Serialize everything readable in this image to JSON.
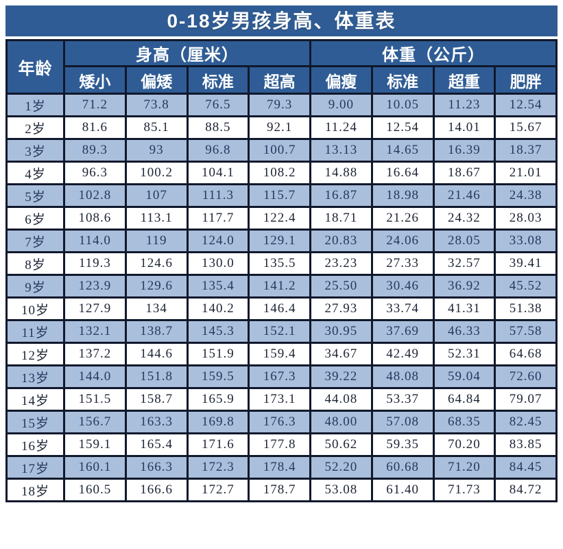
{
  "title": "0-18岁男孩身高、体重表",
  "header": {
    "age_label": "年龄",
    "height_group": "身高（厘米）",
    "weight_group": "体重（公斤）",
    "height_subcols": [
      "矮小",
      "偏矮",
      "标准",
      "超高"
    ],
    "weight_subcols": [
      "偏瘦",
      "标准",
      "超重",
      "肥胖"
    ]
  },
  "colors": {
    "header_bg": "#2f5c94",
    "header_text": "#ffffff",
    "row_alt_bg": "#a9bfdc",
    "row_bg": "#ffffff",
    "border": "#10182b",
    "data_text_blue": "#24395e",
    "data_text_white": "#1c2434"
  },
  "chart_data": {
    "type": "table",
    "title": "0-18岁男孩身高、体重表",
    "row_header": "年龄",
    "column_groups": [
      {
        "label": "身高（厘米）",
        "columns": [
          "矮小",
          "偏矮",
          "标准",
          "超高"
        ]
      },
      {
        "label": "体重（公斤）",
        "columns": [
          "偏瘦",
          "标准",
          "超重",
          "肥胖"
        ]
      }
    ],
    "rows": [
      {
        "age": "1岁",
        "values": [
          "71.2",
          "73.8",
          "76.5",
          "79.3",
          "9.00",
          "10.05",
          "11.23",
          "12.54"
        ]
      },
      {
        "age": "2岁",
        "values": [
          "81.6",
          "85.1",
          "88.5",
          "92.1",
          "11.24",
          "12.54",
          "14.01",
          "15.67"
        ]
      },
      {
        "age": "3岁",
        "values": [
          "89.3",
          "93",
          "96.8",
          "100.7",
          "13.13",
          "14.65",
          "16.39",
          "18.37"
        ]
      },
      {
        "age": "4岁",
        "values": [
          "96.3",
          "100.2",
          "104.1",
          "108.2",
          "14.88",
          "16.64",
          "18.67",
          "21.01"
        ]
      },
      {
        "age": "5岁",
        "values": [
          "102.8",
          "107",
          "111.3",
          "115.7",
          "16.87",
          "18.98",
          "21.46",
          "24.38"
        ]
      },
      {
        "age": "6岁",
        "values": [
          "108.6",
          "113.1",
          "117.7",
          "122.4",
          "18.71",
          "21.26",
          "24.32",
          "28.03"
        ]
      },
      {
        "age": "7岁",
        "values": [
          "114.0",
          "119",
          "124.0",
          "129.1",
          "20.83",
          "24.06",
          "28.05",
          "33.08"
        ]
      },
      {
        "age": "8岁",
        "values": [
          "119.3",
          "124.6",
          "130.0",
          "135.5",
          "23.23",
          "27.33",
          "32.57",
          "39.41"
        ]
      },
      {
        "age": "9岁",
        "values": [
          "123.9",
          "129.6",
          "135.4",
          "141.2",
          "25.50",
          "30.46",
          "36.92",
          "45.52"
        ]
      },
      {
        "age": "10岁",
        "values": [
          "127.9",
          "134",
          "140.2",
          "146.4",
          "27.93",
          "33.74",
          "41.31",
          "51.38"
        ]
      },
      {
        "age": "11岁",
        "values": [
          "132.1",
          "138.7",
          "145.3",
          "152.1",
          "30.95",
          "37.69",
          "46.33",
          "57.58"
        ]
      },
      {
        "age": "12岁",
        "values": [
          "137.2",
          "144.6",
          "151.9",
          "159.4",
          "34.67",
          "42.49",
          "52.31",
          "64.68"
        ]
      },
      {
        "age": "13岁",
        "values": [
          "144.0",
          "151.8",
          "159.5",
          "167.3",
          "39.22",
          "48.08",
          "59.04",
          "72.60"
        ]
      },
      {
        "age": "14岁",
        "values": [
          "151.5",
          "158.7",
          "165.9",
          "173.1",
          "44.08",
          "53.37",
          "64.84",
          "79.07"
        ]
      },
      {
        "age": "15岁",
        "values": [
          "156.7",
          "163.3",
          "169.8",
          "176.3",
          "48.00",
          "57.08",
          "68.35",
          "82.45"
        ]
      },
      {
        "age": "16岁",
        "values": [
          "159.1",
          "165.4",
          "171.6",
          "177.8",
          "50.62",
          "59.35",
          "70.20",
          "83.85"
        ]
      },
      {
        "age": "17岁",
        "values": [
          "160.1",
          "166.3",
          "172.3",
          "178.4",
          "52.20",
          "60.68",
          "71.20",
          "84.45"
        ]
      },
      {
        "age": "18岁",
        "values": [
          "160.5",
          "166.6",
          "172.7",
          "178.7",
          "53.08",
          "61.40",
          "71.73",
          "84.72"
        ]
      }
    ]
  }
}
